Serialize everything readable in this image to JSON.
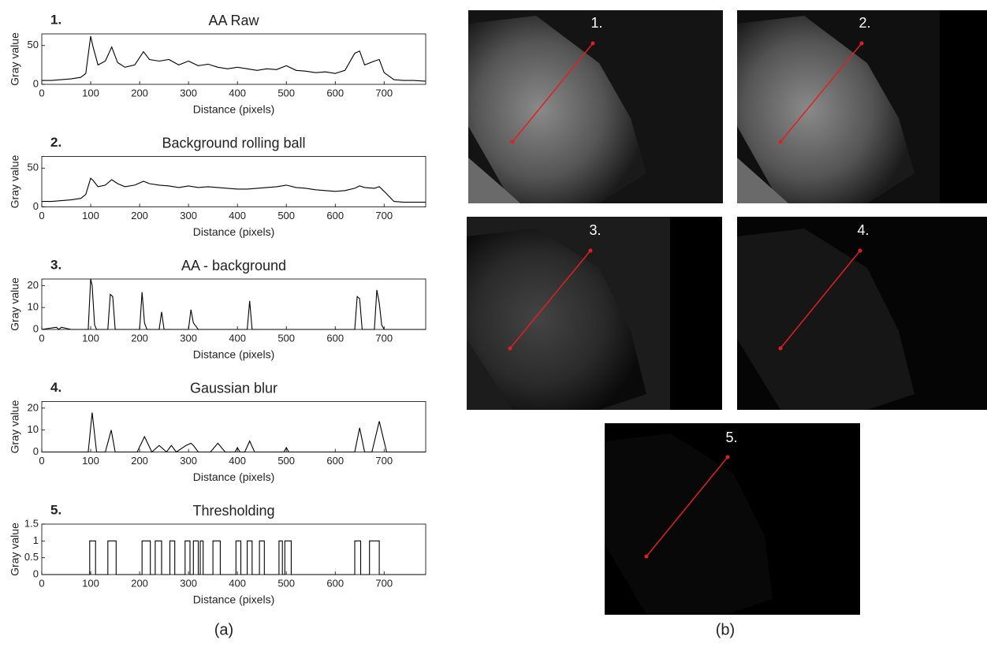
{
  "chart_data": [
    {
      "type": "line",
      "panel_label": "1.",
      "title": "AA Raw",
      "xlabel": "Distance (pixels)",
      "ylabel": "Gray value",
      "color": "#000000",
      "xlim": [
        0,
        785
      ],
      "xticks": [
        0,
        100,
        200,
        300,
        400,
        500,
        600,
        700
      ],
      "ylim": [
        0,
        65
      ],
      "yticks": [
        0,
        50
      ],
      "x": [
        0,
        20,
        40,
        60,
        80,
        90,
        100,
        105,
        115,
        130,
        143,
        155,
        170,
        190,
        208,
        220,
        240,
        260,
        280,
        300,
        320,
        340,
        360,
        380,
        400,
        420,
        440,
        460,
        480,
        500,
        520,
        540,
        560,
        580,
        600,
        620,
        640,
        650,
        660,
        680,
        690,
        700,
        720,
        740,
        760,
        785
      ],
      "values": [
        5,
        5,
        6,
        7,
        9,
        14,
        62,
        48,
        25,
        30,
        48,
        28,
        22,
        25,
        42,
        32,
        30,
        32,
        25,
        30,
        24,
        26,
        22,
        20,
        22,
        20,
        18,
        20,
        19,
        24,
        18,
        17,
        15,
        16,
        14,
        18,
        40,
        43,
        25,
        30,
        32,
        15,
        6,
        5,
        5,
        4
      ]
    },
    {
      "type": "line",
      "panel_label": "2.",
      "title": "Background rolling ball",
      "xlabel": "Distance (pixels)",
      "ylabel": "Gray value",
      "color": "#000000",
      "xlim": [
        0,
        785
      ],
      "xticks": [
        0,
        100,
        200,
        300,
        400,
        500,
        600,
        700
      ],
      "ylim": [
        0,
        65
      ],
      "yticks": [
        0,
        50
      ],
      "x": [
        0,
        20,
        40,
        60,
        80,
        90,
        100,
        105,
        115,
        130,
        143,
        155,
        170,
        190,
        208,
        220,
        240,
        260,
        280,
        300,
        320,
        340,
        360,
        380,
        400,
        420,
        440,
        460,
        480,
        500,
        520,
        540,
        560,
        580,
        600,
        620,
        640,
        650,
        660,
        680,
        690,
        700,
        720,
        740,
        760,
        785
      ],
      "values": [
        7,
        7,
        8,
        9,
        11,
        16,
        37,
        34,
        26,
        28,
        35,
        30,
        26,
        28,
        33,
        30,
        28,
        27,
        25,
        27,
        25,
        26,
        25,
        24,
        23,
        23,
        24,
        25,
        26,
        28,
        25,
        24,
        22,
        21,
        20,
        21,
        24,
        27,
        25,
        24,
        26,
        20,
        7,
        6,
        6,
        6
      ]
    },
    {
      "type": "line",
      "panel_label": "3.",
      "title": "AA - background",
      "xlabel": "Distance (pixels)",
      "ylabel": "Gray value",
      "color": "#000000",
      "xlim": [
        0,
        785
      ],
      "xticks": [
        0,
        100,
        200,
        300,
        400,
        500,
        600,
        700
      ],
      "ylim": [
        0,
        23
      ],
      "yticks": [
        0,
        10,
        20
      ],
      "x": [
        0,
        30,
        35,
        40,
        60,
        95,
        100,
        103,
        108,
        112,
        135,
        140,
        145,
        150,
        200,
        205,
        210,
        215,
        240,
        245,
        250,
        300,
        305,
        310,
        320,
        420,
        425,
        430,
        640,
        645,
        650,
        655,
        680,
        685,
        690,
        695,
        700,
        785
      ],
      "values": [
        0,
        1,
        0,
        1,
        0,
        0,
        23,
        20,
        2,
        0,
        0,
        16,
        15,
        0,
        0,
        17,
        3,
        0,
        0,
        8,
        0,
        0,
        9,
        3,
        0,
        0,
        13,
        0,
        0,
        15,
        14,
        0,
        0,
        18,
        12,
        2,
        0,
        0
      ]
    },
    {
      "type": "line",
      "panel_label": "4.",
      "title": "Gaussian blur",
      "xlabel": "Distance (pixels)",
      "ylabel": "Gray value",
      "color": "#000000",
      "xlim": [
        0,
        785
      ],
      "xticks": [
        0,
        100,
        200,
        300,
        400,
        500,
        600,
        700
      ],
      "ylim": [
        0,
        23
      ],
      "yticks": [
        0,
        10,
        20
      ],
      "x": [
        0,
        95,
        103,
        112,
        130,
        142,
        150,
        195,
        210,
        225,
        240,
        255,
        265,
        275,
        295,
        305,
        310,
        320,
        345,
        360,
        375,
        395,
        400,
        405,
        415,
        425,
        435,
        495,
        500,
        505,
        640,
        650,
        660,
        675,
        690,
        705,
        785
      ],
      "values": [
        0,
        0,
        18,
        0,
        0,
        10,
        0,
        0,
        7,
        0,
        3,
        0,
        3,
        0,
        3,
        4,
        3,
        0,
        0,
        4,
        0,
        0,
        2,
        0,
        0,
        5,
        0,
        0,
        2,
        0,
        0,
        11,
        0,
        0,
        14,
        0,
        0
      ]
    },
    {
      "type": "line",
      "panel_label": "5.",
      "title": "Thresholding",
      "xlabel": "Distance (pixels)",
      "ylabel": "Gray value",
      "color": "#000000",
      "xlim": [
        0,
        785
      ],
      "xticks": [
        0,
        100,
        200,
        300,
        400,
        500,
        600,
        700
      ],
      "ylim": [
        0,
        1.5
      ],
      "yticks": [
        0,
        0.5,
        1,
        1.5
      ],
      "x": [
        0,
        98,
        98,
        110,
        110,
        135,
        135,
        152,
        152,
        205,
        205,
        222,
        222,
        232,
        232,
        245,
        245,
        262,
        262,
        272,
        272,
        293,
        293,
        303,
        303,
        310,
        310,
        320,
        320,
        324,
        324,
        330,
        330,
        350,
        350,
        365,
        365,
        397,
        397,
        407,
        407,
        420,
        420,
        430,
        430,
        445,
        445,
        455,
        455,
        485,
        485,
        492,
        492,
        497,
        497,
        510,
        510,
        640,
        640,
        652,
        652,
        670,
        670,
        690,
        690,
        785
      ],
      "values": [
        0,
        0,
        1,
        1,
        0,
        0,
        1,
        1,
        0,
        0,
        1,
        1,
        0,
        0,
        1,
        1,
        0,
        0,
        1,
        1,
        0,
        0,
        1,
        1,
        0,
        0,
        1,
        1,
        0,
        0,
        1,
        1,
        0,
        0,
        1,
        1,
        0,
        0,
        1,
        1,
        0,
        0,
        1,
        1,
        0,
        0,
        1,
        1,
        0,
        0,
        1,
        1,
        0,
        0,
        1,
        1,
        0,
        0,
        1,
        1,
        0,
        0,
        1,
        1,
        0,
        0
      ]
    }
  ],
  "images": [
    {
      "label": "1."
    },
    {
      "label": "2."
    },
    {
      "label": "3."
    },
    {
      "label": "4."
    },
    {
      "label": "5."
    }
  ],
  "figure_labels": {
    "a": "(a)",
    "b": "(b)"
  }
}
